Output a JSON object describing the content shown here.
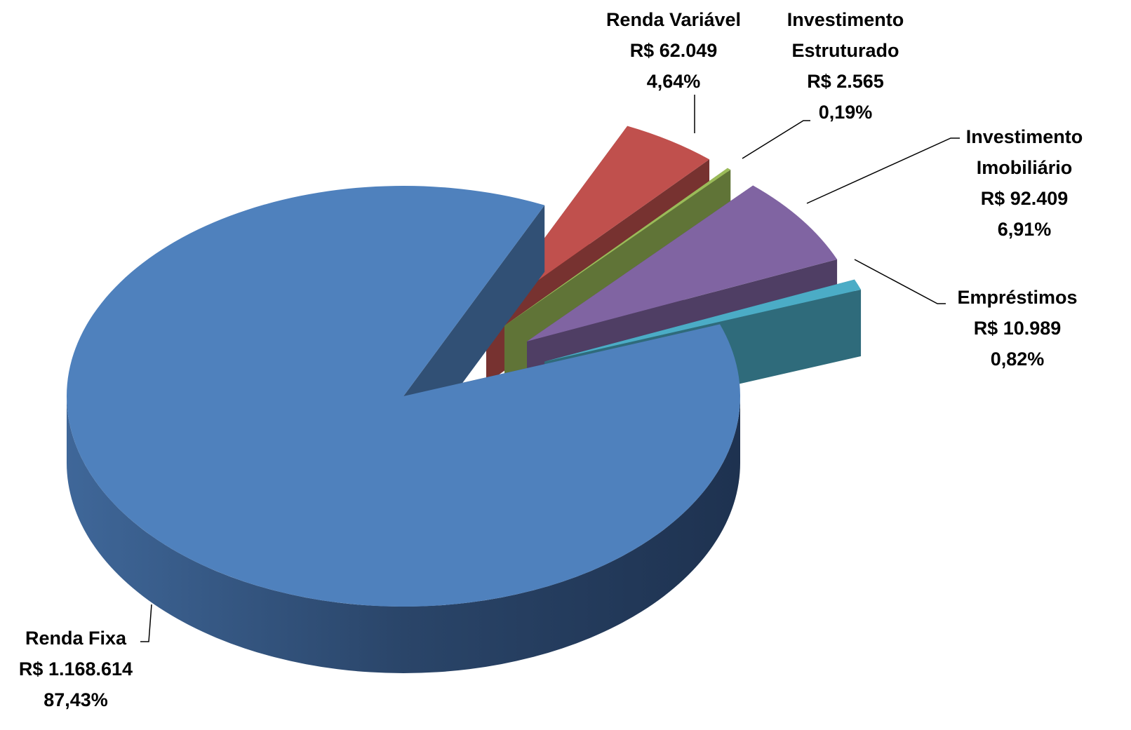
{
  "chart_data": {
    "type": "pie",
    "categories": [
      "Renda Fixa",
      "Renda Variável",
      "Investimento Estruturado",
      "Investimento Imobiliário",
      "Empréstimos"
    ],
    "values": [
      87.43,
      4.64,
      0.19,
      6.91,
      0.82
    ],
    "value_labels": [
      "87,43%",
      "4,64%",
      "0,19%",
      "6,91%",
      "0,82%"
    ],
    "amounts": [
      1168614,
      62049,
      2565,
      92409,
      10989
    ],
    "amount_labels": [
      "R$ 1.168.614",
      "R$ 62.049",
      "R$ 2.565",
      "R$ 92.409",
      "R$ 10.989"
    ],
    "colors": [
      "#4f81bd",
      "#c0504d",
      "#9bbb59",
      "#8064a2",
      "#4bacc6"
    ]
  }
}
